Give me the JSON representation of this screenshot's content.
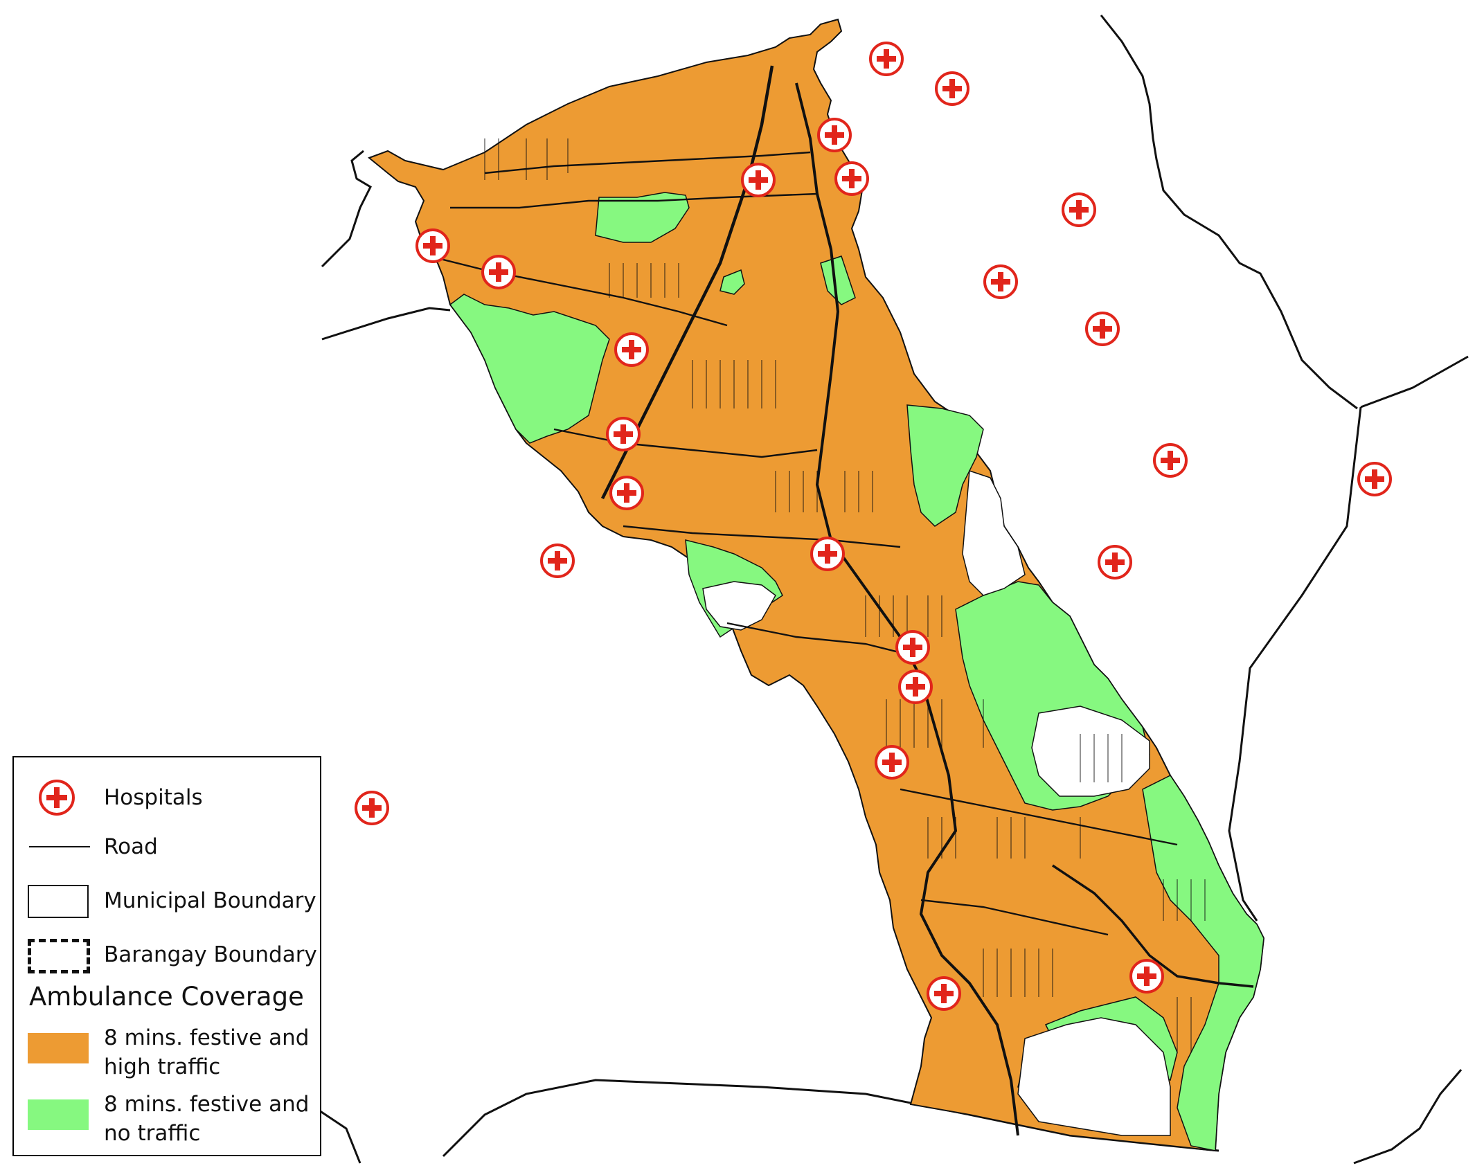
{
  "legend": {
    "hospitals_label": "Hospitals",
    "road_label": "Road",
    "municipal_label": "Municipal Boundary",
    "barangay_label": "Barangay Boundary",
    "coverage_title": "Ambulance Coverage",
    "orange_label": "8 mins. festive and high traffic",
    "green_label": "8 mins. festive and no traffic"
  },
  "colors": {
    "orange": "#ED9B33",
    "green": "#86F880",
    "hospital_red": "#E1251B",
    "road": "#111111"
  },
  "hospital_icon": "red-cross-in-circle-icon"
}
